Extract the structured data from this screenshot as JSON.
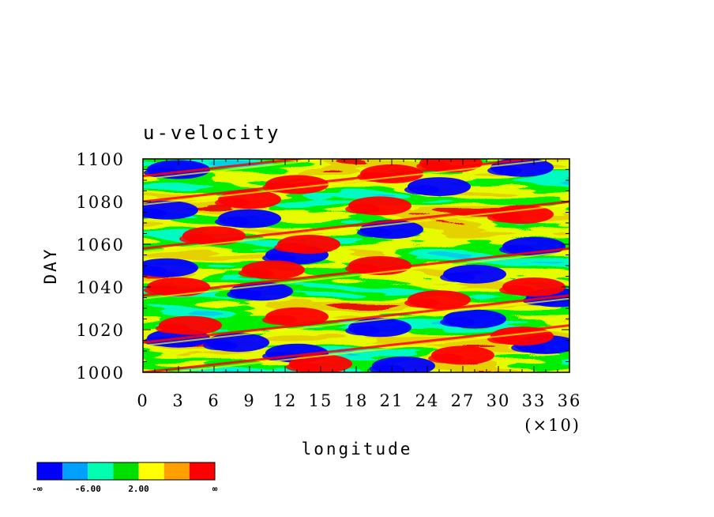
{
  "chart_data": {
    "type": "heatmap",
    "title": "u-velocity",
    "xlabel": "longitude",
    "ylabel": "DAY",
    "x_multiplier": "(×10)",
    "xlim": [
      0,
      36
    ],
    "ylim": [
      1000,
      1100
    ],
    "x_ticks": [
      "0",
      "3",
      "6",
      "9",
      "12",
      "15",
      "18",
      "21",
      "24",
      "27",
      "30",
      "33",
      "36"
    ],
    "y_ticks": [
      "1000",
      "1020",
      "1040",
      "1060",
      "1080",
      "1100"
    ],
    "colorbar": {
      "colors": [
        "#0000ff",
        "#00a0ff",
        "#00ffb0",
        "#00e000",
        "#ffff00",
        "#ffa000",
        "#ff0000"
      ],
      "labels": [
        "-∞",
        "-6.00",
        "2.00",
        "∞"
      ]
    },
    "features": {
      "blue_patches": [
        {
          "lon": 3,
          "day": 1095
        },
        {
          "lon": 25,
          "day": 1087
        },
        {
          "lon": 32,
          "day": 1096
        },
        {
          "lon": 2,
          "day": 1076
        },
        {
          "lon": 9,
          "day": 1072
        },
        {
          "lon": 21,
          "day": 1067
        },
        {
          "lon": 33,
          "day": 1059
        },
        {
          "lon": 13,
          "day": 1055
        },
        {
          "lon": 2,
          "day": 1049
        },
        {
          "lon": 10,
          "day": 1038
        },
        {
          "lon": 28,
          "day": 1046
        },
        {
          "lon": 35,
          "day": 1035
        },
        {
          "lon": 20,
          "day": 1021
        },
        {
          "lon": 28,
          "day": 1025
        },
        {
          "lon": 3,
          "day": 1016
        },
        {
          "lon": 8,
          "day": 1014
        },
        {
          "lon": 34,
          "day": 1013
        },
        {
          "lon": 22,
          "day": 1003
        },
        {
          "lon": 13,
          "day": 1009
        }
      ],
      "red_patches": [
        {
          "lon": 26,
          "day": 1098
        },
        {
          "lon": 13,
          "day": 1088
        },
        {
          "lon": 21,
          "day": 1093
        },
        {
          "lon": 9,
          "day": 1081
        },
        {
          "lon": 20,
          "day": 1078
        },
        {
          "lon": 32,
          "day": 1074
        },
        {
          "lon": 6,
          "day": 1064
        },
        {
          "lon": 14,
          "day": 1060
        },
        {
          "lon": 11,
          "day": 1048
        },
        {
          "lon": 20,
          "day": 1050
        },
        {
          "lon": 3,
          "day": 1040
        },
        {
          "lon": 25,
          "day": 1034
        },
        {
          "lon": 33,
          "day": 1040
        },
        {
          "lon": 13,
          "day": 1026
        },
        {
          "lon": 4,
          "day": 1022
        },
        {
          "lon": 32,
          "day": 1017
        },
        {
          "lon": 15,
          "day": 1004
        },
        {
          "lon": 27,
          "day": 1008
        }
      ]
    }
  }
}
